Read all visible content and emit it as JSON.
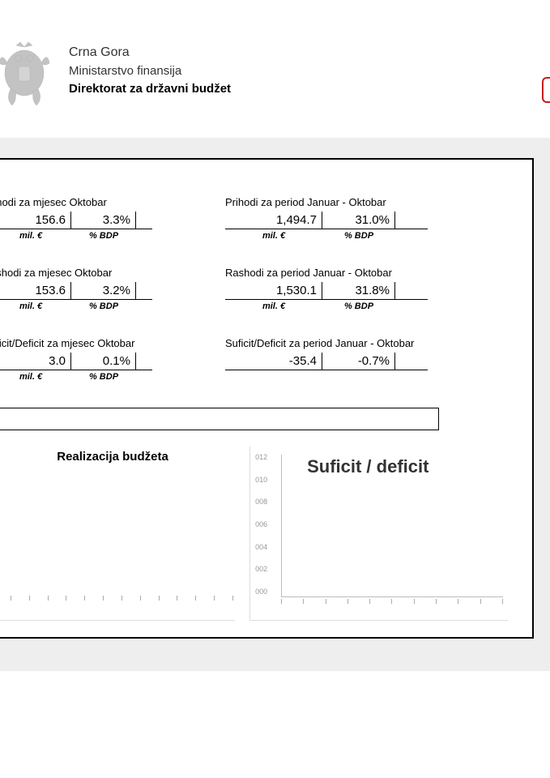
{
  "header": {
    "country": "Crna Gora",
    "ministry": "Ministarstvo finansija",
    "directorate": "Direktorat za državni budžet"
  },
  "units": {
    "currency_label": "mil. €",
    "pct_label": "% BDP"
  },
  "metrics": {
    "row1": {
      "left": {
        "title": "rihodi za mjesec Oktobar",
        "value": "156.6",
        "pct": "3.3%"
      },
      "right": {
        "title": "Prihodi za period Januar - Oktobar",
        "value": "1,494.7",
        "pct": "31.0%"
      }
    },
    "row2": {
      "left": {
        "title": "ashodi za mjesec Oktobar",
        "value": "153.6",
        "pct": "3.2%"
      },
      "right": {
        "title": "Rashodi za period Januar - Oktobar",
        "value": "1,530.1",
        "pct": "31.8%"
      }
    },
    "row3": {
      "left": {
        "title": "uficit/Deficit za mjesec Oktobar",
        "value": "3.0",
        "pct": "0.1%"
      },
      "right": {
        "title": "Suficit/Deficit za period Januar - Oktobar",
        "value": "-35.4",
        "pct": "-0.7%"
      }
    }
  },
  "charts": {
    "left": {
      "title": "Realizacija budžeta",
      "x_tick_count": 14
    },
    "right": {
      "title": "Suficit / deficit",
      "y_labels": [
        "012",
        "010",
        "008",
        "006",
        "004",
        "002",
        "000"
      ],
      "x_tick_count": 11,
      "axis_color": "#bbbbbb",
      "label_color": "#999999"
    }
  },
  "colors": {
    "page_bg": "#ffffff",
    "panel_border": "#000000",
    "gray_area": "#eeeeee",
    "red_accent": "#c41e1e"
  }
}
